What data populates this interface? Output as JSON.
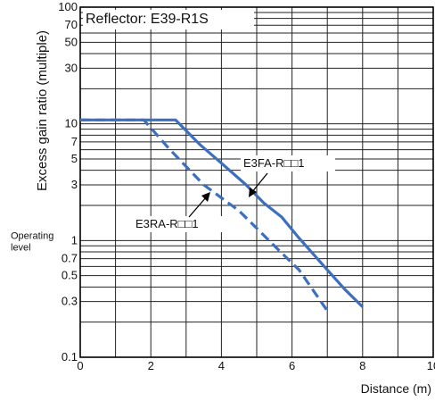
{
  "chart_data": {
    "type": "line",
    "title": "Reflector: E39-R1S",
    "xlabel": "Distance (m)",
    "ylabel": "Excess gain ratio (multiple)",
    "x_scale": "linear",
    "y_scale": "log",
    "xlim": [
      0,
      10
    ],
    "ylim": [
      0.1,
      100
    ],
    "x_ticks": [
      0,
      2,
      4,
      6,
      8,
      10
    ],
    "x_tick_labels": [
      "0",
      "2",
      "4",
      "6",
      "8",
      "10"
    ],
    "y_ticks": [
      0.1,
      0.3,
      0.5,
      0.7,
      1,
      3,
      5,
      7,
      10,
      30,
      50,
      70,
      100
    ],
    "y_tick_labels": [
      "0.1",
      "0.3",
      "0.5",
      "0.7",
      "1",
      "3",
      "5",
      "7",
      "10",
      "30",
      "50",
      "70",
      "100"
    ],
    "y_gridlines": [
      0.1,
      0.2,
      0.3,
      0.4,
      0.5,
      0.6,
      0.7,
      0.8,
      0.9,
      1,
      2,
      3,
      4,
      5,
      6,
      7,
      8,
      9,
      10,
      20,
      30,
      40,
      50,
      60,
      70,
      80,
      90,
      100
    ],
    "x_gridlines": [
      0,
      1,
      2,
      3,
      4,
      5,
      6,
      7,
      8,
      9,
      10
    ],
    "grid": true,
    "operating_level_label": "Operating level",
    "operating_level_value": 1,
    "series": [
      {
        "name": "E3FA-R□□1",
        "style": "solid",
        "color": "#3d6fbf",
        "points": [
          [
            0,
            10.8
          ],
          [
            2.7,
            10.8
          ],
          [
            3.4,
            6.6
          ],
          [
            4.0,
            4.6
          ],
          [
            4.7,
            3.0
          ],
          [
            5.2,
            2.1
          ],
          [
            5.7,
            1.6
          ],
          [
            6.2,
            1.05
          ],
          [
            7.0,
            0.56
          ],
          [
            7.5,
            0.38
          ],
          [
            8.0,
            0.27
          ]
        ]
      },
      {
        "name": "E3RA-R□□1",
        "style": "dashed",
        "color": "#3d6fbf",
        "points": [
          [
            0,
            10.8
          ],
          [
            1.8,
            10.8
          ],
          [
            2.5,
            6.2
          ],
          [
            3.5,
            3.0
          ],
          [
            4.5,
            1.8
          ],
          [
            5.5,
            0.9
          ],
          [
            6.2,
            0.56
          ],
          [
            7.0,
            0.25
          ]
        ]
      }
    ]
  }
}
